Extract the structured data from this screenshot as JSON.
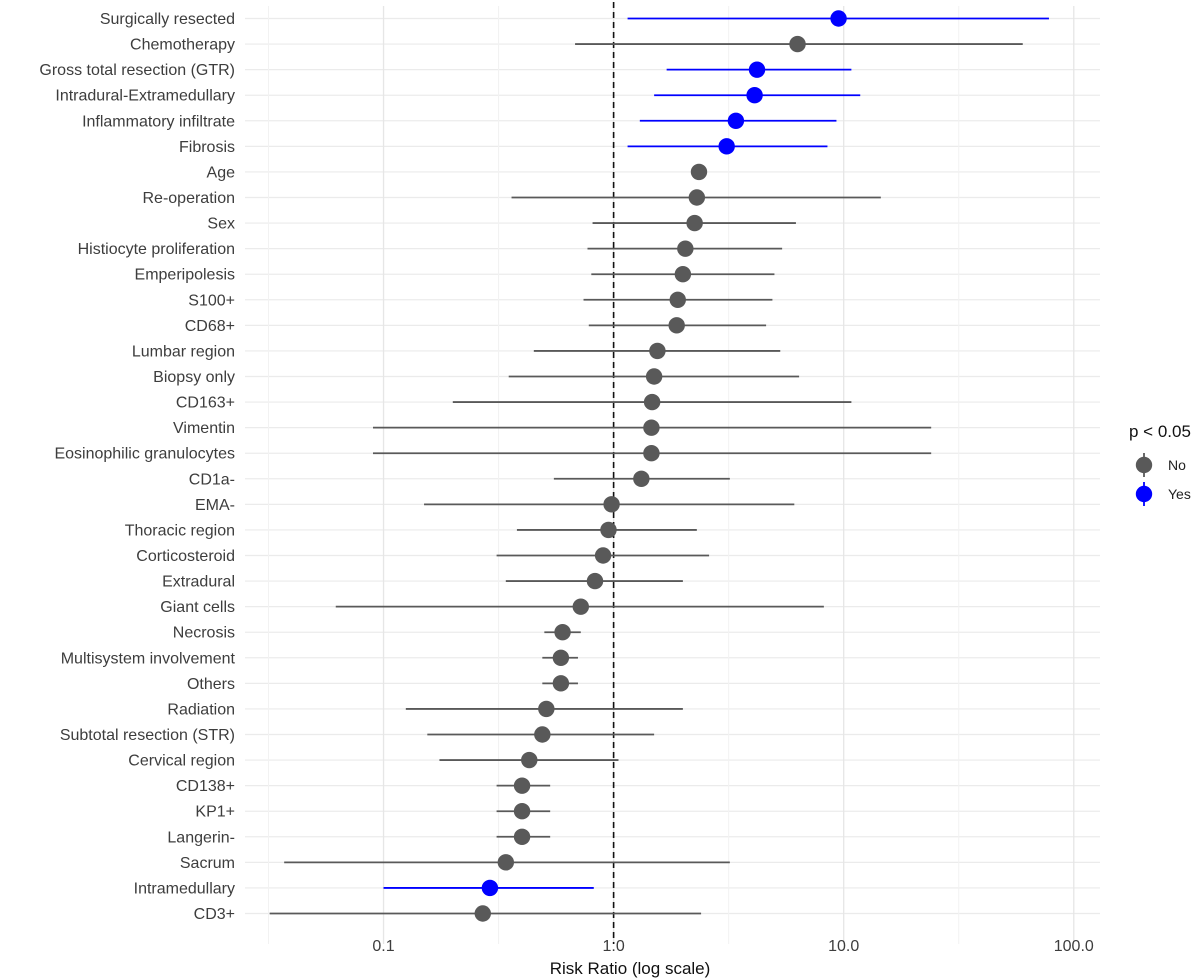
{
  "chart_data": {
    "type": "scatter",
    "subtype": "forest-plot",
    "xlabel": "Risk Ratio (log scale)",
    "x_scale": "log",
    "xlim": [
      0.025,
      130
    ],
    "x_ticks": [
      {
        "value": 0.1,
        "label": "0.1"
      },
      {
        "value": 1,
        "label": "1.0"
      },
      {
        "value": 10,
        "label": "10.0"
      },
      {
        "value": 100,
        "label": "100.0"
      }
    ],
    "reference_line": 1,
    "grid": true,
    "legend": {
      "title": "p < 0.05",
      "placement": "right",
      "entries": [
        {
          "label": "No",
          "color": "#595959"
        },
        {
          "label": "Yes",
          "color": "#0000ff"
        }
      ]
    },
    "colors": {
      "No": "#595959",
      "Yes": "#0000ff"
    },
    "rows": [
      {
        "label": "Surgically resected",
        "rr": 9.5,
        "lo": 1.15,
        "hi": 78,
        "sig": "Yes"
      },
      {
        "label": "Chemotherapy",
        "rr": 6.3,
        "lo": 0.68,
        "hi": 60,
        "sig": "No"
      },
      {
        "label": "Gross total resection (GTR)",
        "rr": 4.2,
        "lo": 1.7,
        "hi": 10.8,
        "sig": "Yes"
      },
      {
        "label": "Intradural-Extramedullary",
        "rr": 4.1,
        "lo": 1.5,
        "hi": 11.8,
        "sig": "Yes"
      },
      {
        "label": "Inflammatory infiltrate",
        "rr": 3.4,
        "lo": 1.3,
        "hi": 9.3,
        "sig": "Yes"
      },
      {
        "label": "Fibrosis",
        "rr": 3.1,
        "lo": 1.15,
        "hi": 8.5,
        "sig": "Yes"
      },
      {
        "label": "Age",
        "rr": 2.35,
        "lo": 2.3,
        "hi": 2.4,
        "sig": "No"
      },
      {
        "label": "Re-operation",
        "rr": 2.3,
        "lo": 0.36,
        "hi": 14.5,
        "sig": "No"
      },
      {
        "label": "Sex",
        "rr": 2.25,
        "lo": 0.81,
        "hi": 6.2,
        "sig": "No"
      },
      {
        "label": "Histiocyte proliferation",
        "rr": 2.05,
        "lo": 0.77,
        "hi": 5.4,
        "sig": "No"
      },
      {
        "label": "Emperipolesis",
        "rr": 2.0,
        "lo": 0.8,
        "hi": 5.0,
        "sig": "No"
      },
      {
        "label": "S100+",
        "rr": 1.9,
        "lo": 0.74,
        "hi": 4.9,
        "sig": "No"
      },
      {
        "label": "CD68+",
        "rr": 1.88,
        "lo": 0.78,
        "hi": 4.6,
        "sig": "No"
      },
      {
        "label": "Lumbar region",
        "rr": 1.55,
        "lo": 0.45,
        "hi": 5.3,
        "sig": "No"
      },
      {
        "label": "Biopsy only",
        "rr": 1.5,
        "lo": 0.35,
        "hi": 6.4,
        "sig": "No"
      },
      {
        "label": "CD163+",
        "rr": 1.47,
        "lo": 0.2,
        "hi": 10.8,
        "sig": "No"
      },
      {
        "label": "Vimentin",
        "rr": 1.46,
        "lo": 0.09,
        "hi": 24,
        "sig": "No"
      },
      {
        "label": "Eosinophilic granulocytes",
        "rr": 1.46,
        "lo": 0.09,
        "hi": 24,
        "sig": "No"
      },
      {
        "label": "CD1a-",
        "rr": 1.32,
        "lo": 0.55,
        "hi": 3.2,
        "sig": "No"
      },
      {
        "label": "EMA-",
        "rr": 0.98,
        "lo": 0.15,
        "hi": 6.1,
        "sig": "No"
      },
      {
        "label": "Thoracic region",
        "rr": 0.95,
        "lo": 0.38,
        "hi": 2.3,
        "sig": "No"
      },
      {
        "label": "Corticosteroid",
        "rr": 0.9,
        "lo": 0.31,
        "hi": 2.6,
        "sig": "No"
      },
      {
        "label": "Extradural",
        "rr": 0.83,
        "lo": 0.34,
        "hi": 2.0,
        "sig": "No"
      },
      {
        "label": "Giant cells",
        "rr": 0.72,
        "lo": 0.062,
        "hi": 8.2,
        "sig": "No"
      },
      {
        "label": "Necrosis",
        "rr": 0.6,
        "lo": 0.5,
        "hi": 0.72,
        "sig": "No"
      },
      {
        "label": "Multisystem involvement",
        "rr": 0.59,
        "lo": 0.49,
        "hi": 0.7,
        "sig": "No"
      },
      {
        "label": "Others",
        "rr": 0.59,
        "lo": 0.49,
        "hi": 0.7,
        "sig": "No"
      },
      {
        "label": "Radiation",
        "rr": 0.51,
        "lo": 0.125,
        "hi": 2.0,
        "sig": "No"
      },
      {
        "label": "Subtotal resection (STR)",
        "rr": 0.49,
        "lo": 0.155,
        "hi": 1.5,
        "sig": "No"
      },
      {
        "label": "Cervical region",
        "rr": 0.43,
        "lo": 0.175,
        "hi": 1.05,
        "sig": "No"
      },
      {
        "label": "CD138+",
        "rr": 0.4,
        "lo": 0.31,
        "hi": 0.53,
        "sig": "No"
      },
      {
        "label": "KP1+",
        "rr": 0.4,
        "lo": 0.31,
        "hi": 0.53,
        "sig": "No"
      },
      {
        "label": "Langerin-",
        "rr": 0.4,
        "lo": 0.31,
        "hi": 0.53,
        "sig": "No"
      },
      {
        "label": "Sacrum",
        "rr": 0.34,
        "lo": 0.037,
        "hi": 3.2,
        "sig": "No"
      },
      {
        "label": "Intramedullary",
        "rr": 0.29,
        "lo": 0.1,
        "hi": 0.82,
        "sig": "Yes"
      },
      {
        "label": "CD3+",
        "rr": 0.27,
        "lo": 0.032,
        "hi": 2.4,
        "sig": "No"
      }
    ]
  }
}
